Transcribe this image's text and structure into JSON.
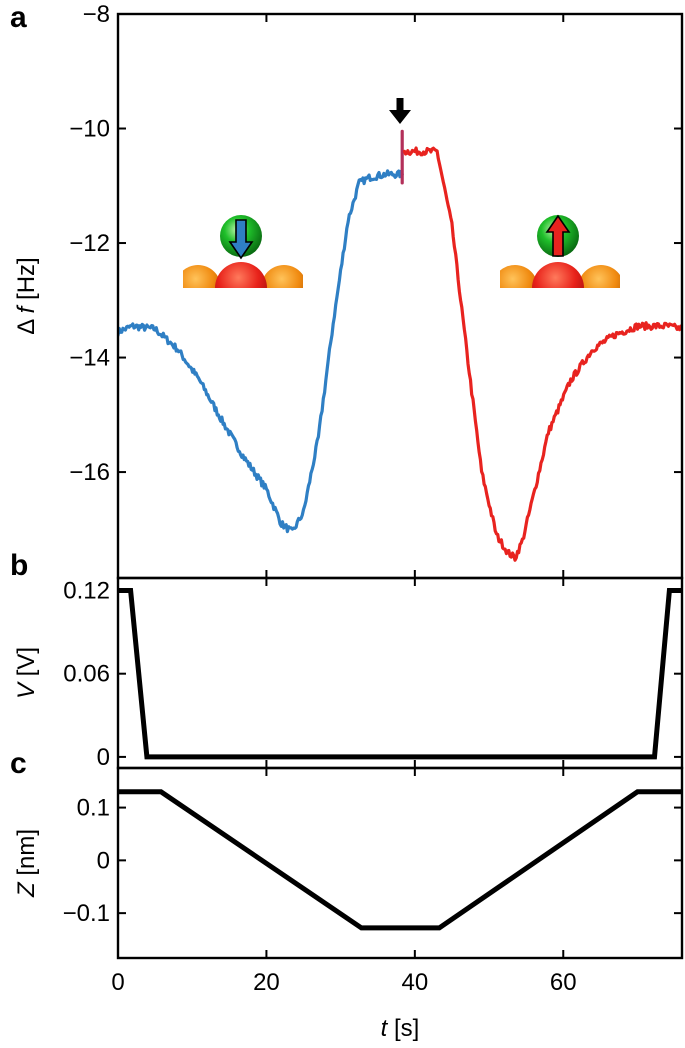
{
  "chart_data": [
    {
      "panel": "a",
      "type": "line",
      "xlabel": "t [s]",
      "ylabel": "Δ f [Hz]",
      "xlim": [
        0,
        76
      ],
      "ylim": [
        -17.85,
        -8
      ],
      "yticks": [
        -8,
        -10,
        -12,
        -14,
        -16
      ],
      "ytick_labels": [
        "−8",
        "−10",
        "−12",
        "−14",
        "−16"
      ],
      "xticks": [
        0,
        20,
        40,
        60
      ],
      "grid": false,
      "series": [
        {
          "color": "#2f7fc4",
          "x": [
            0,
            2,
            5,
            8,
            11,
            14,
            17,
            20,
            22,
            23.5,
            25,
            27,
            29,
            31,
            32.5,
            34,
            36,
            37.5,
            38.3
          ],
          "y": [
            -13.55,
            -13.45,
            -13.5,
            -13.85,
            -14.4,
            -15.1,
            -15.75,
            -16.3,
            -16.9,
            -17.05,
            -16.7,
            -15.4,
            -13.4,
            -11.6,
            -10.95,
            -10.85,
            -10.8,
            -10.8,
            -10.8
          ],
          "noise": 0.06
        },
        {
          "color": "#b3305a",
          "x": [
            38.3,
            38.3
          ],
          "y": [
            -10.95,
            -10.05
          ],
          "noise": 0
        },
        {
          "color": "#e8231f",
          "x": [
            38.6,
            39.5,
            41,
            43,
            45,
            47,
            49,
            51,
            52.5,
            53.5,
            54.5,
            56,
            58,
            61,
            64,
            67,
            70,
            72,
            74,
            76
          ],
          "y": [
            -10.4,
            -10.4,
            -10.4,
            -10.4,
            -11.7,
            -13.9,
            -16.0,
            -17.1,
            -17.4,
            -17.5,
            -17.2,
            -16.4,
            -15.3,
            -14.4,
            -13.85,
            -13.6,
            -13.45,
            -13.45,
            -13.45,
            -13.5
          ],
          "noise": 0.06
        }
      ],
      "annotations": [
        "down-arrow-icon marking the spin switch event near t ≈ 38 s"
      ]
    },
    {
      "panel": "b",
      "type": "line",
      "xlabel": "",
      "ylabel": "V [V]",
      "xlim": [
        0,
        76
      ],
      "ylim": [
        -0.008,
        0.129
      ],
      "yticks": [
        0,
        0.06,
        0.12
      ],
      "ytick_labels": [
        "0",
        "0.06",
        "0.12"
      ],
      "grid": false,
      "series": [
        {
          "color": "#000000",
          "x": [
            0,
            1.7,
            3.9,
            72.3,
            74.3,
            76
          ],
          "y": [
            0.12,
            0.12,
            0,
            0,
            0.12,
            0.12
          ]
        }
      ]
    },
    {
      "panel": "c",
      "type": "line",
      "xlabel": "t [s]",
      "ylabel": "Z [nm]",
      "xlim": [
        0,
        76
      ],
      "ylim": [
        -0.185,
        0.175
      ],
      "yticks": [
        -0.1,
        0,
        0.1
      ],
      "ytick_labels": [
        "−0.1",
        "0",
        "0.1"
      ],
      "xticks": [
        0,
        20,
        40,
        60
      ],
      "xtick_labels": [
        "0",
        "20",
        "40",
        "60"
      ],
      "grid": false,
      "series": [
        {
          "color": "#000000",
          "x": [
            0,
            5.8,
            32.8,
            43.3,
            70,
            76
          ],
          "y": [
            0.13,
            0.13,
            -0.128,
            -0.128,
            0.13,
            0.13
          ]
        }
      ]
    }
  ],
  "labels": {
    "panel_a": "a",
    "panel_b": "b",
    "panel_c": "c",
    "a_ylabel_prefix": "Δ ",
    "a_ylabel_var": "f",
    "a_ylabel_unit": " [Hz]",
    "b_ylabel_var": "V",
    "b_ylabel_unit": " [V]",
    "c_ylabel_var": "Z",
    "c_ylabel_unit": " [nm]",
    "x_label_var": "t",
    "x_label_unit": " [s]"
  },
  "insets": [
    {
      "name": "inset-antiparallel",
      "tip_arrow": "up",
      "tip_arrow_color": "#e8231f",
      "atom_arrow": "down",
      "atom_arrow_color": "#2f7fc4"
    },
    {
      "name": "inset-parallel",
      "tip_arrow": "up",
      "tip_arrow_color": "#e8231f",
      "atom_arrow": "up",
      "atom_arrow_color": "#e8231f"
    }
  ]
}
